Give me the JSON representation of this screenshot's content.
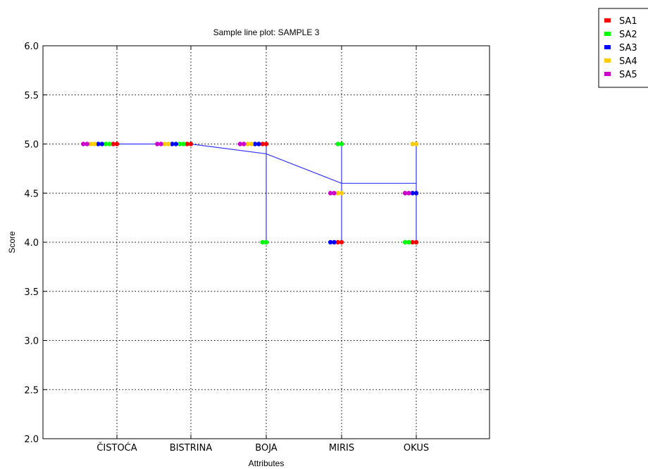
{
  "chart_data": {
    "type": "line",
    "title": "Sample line plot: SAMPLE 3",
    "xlabel": "Attributes",
    "ylabel": "Score",
    "categories": [
      "ČISTOĆA",
      "BISTRINA",
      "BOJA",
      "MIRIS",
      "OKUS"
    ],
    "ylim": [
      2.0,
      6.0
    ],
    "yticks": [
      "2.0",
      "2.5",
      "3.0",
      "3.5",
      "4.0",
      "4.5",
      "5.0",
      "5.5",
      "6.0"
    ],
    "grid": true,
    "legend_position": "outside-top-right",
    "mean_line": {
      "values": [
        5.0,
        5.0,
        4.9,
        4.6,
        4.6
      ],
      "color": "#3333ff"
    },
    "series": [
      {
        "name": "SA1",
        "color": "#ff0000",
        "values": [
          5.0,
          5.0,
          5.0,
          4.0,
          4.0
        ]
      },
      {
        "name": "SA2",
        "color": "#00ff00",
        "values": [
          5.0,
          5.0,
          4.0,
          5.0,
          4.0
        ]
      },
      {
        "name": "SA3",
        "color": "#0000ff",
        "values": [
          5.0,
          5.0,
          5.0,
          4.0,
          4.5
        ]
      },
      {
        "name": "SA4",
        "color": "#ffcc00",
        "values": [
          5.0,
          5.0,
          5.0,
          4.5,
          5.0
        ]
      },
      {
        "name": "SA5",
        "color": "#cc00cc",
        "values": [
          5.0,
          5.0,
          5.0,
          4.5,
          4.5
        ]
      }
    ]
  }
}
